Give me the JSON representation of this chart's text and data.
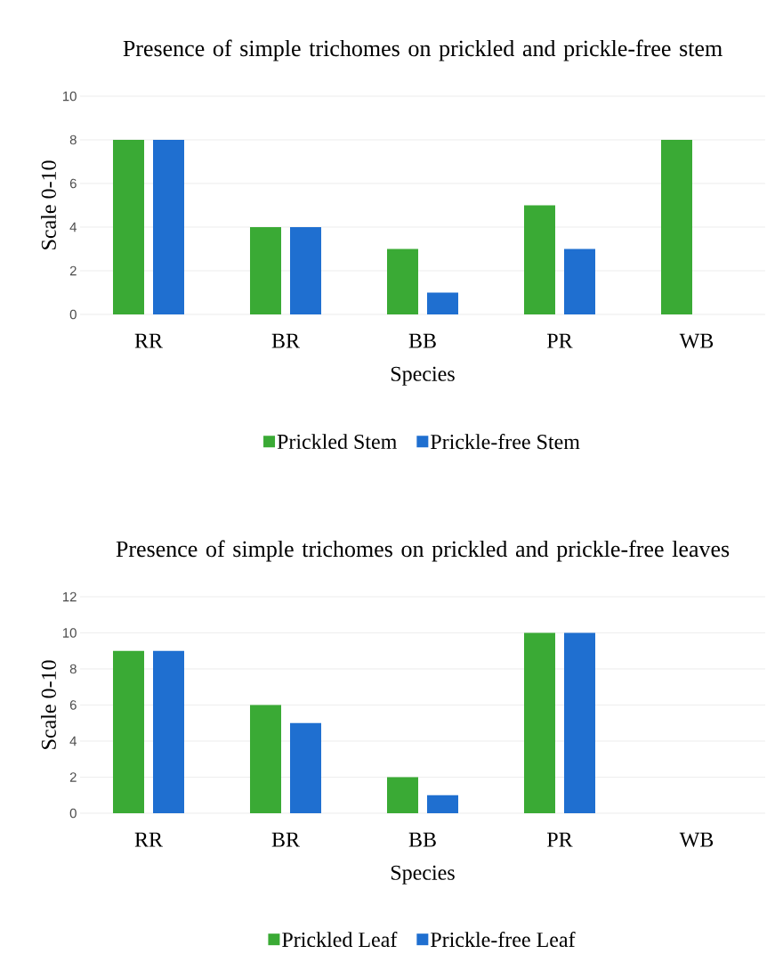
{
  "chart_data": [
    {
      "type": "bar",
      "title": "Presence of simple  trichomes  on prickled and prickle-free stem",
      "xlabel": "Species",
      "ylabel": "Scale 0-10",
      "categories": [
        "RR",
        "BR",
        "BB",
        "PR",
        "WB"
      ],
      "series": [
        {
          "name": "Prickled Stem",
          "color": "#3aaa35",
          "values": [
            8,
            4,
            3,
            5,
            8
          ]
        },
        {
          "name": "Prickle-free Stem",
          "color": "#1f6fd0",
          "values": [
            8,
            4,
            1,
            3,
            0
          ]
        }
      ],
      "ylim": [
        0,
        10
      ],
      "yticks": [
        0,
        2,
        4,
        6,
        8,
        10
      ],
      "grid": "y",
      "legend": "bottom"
    },
    {
      "type": "bar",
      "title": "Presence of simple  trichomes  on prickled and prickle-free leaves",
      "xlabel": "Species",
      "ylabel": "Scale 0-10",
      "categories": [
        "RR",
        "BR",
        "BB",
        "PR",
        "WB"
      ],
      "series": [
        {
          "name": "Prickled Leaf",
          "color": "#3aaa35",
          "values": [
            9,
            6,
            2,
            10,
            0
          ]
        },
        {
          "name": "Prickle-free Leaf",
          "color": "#1f6fd0",
          "values": [
            9,
            5,
            1,
            10,
            0
          ]
        }
      ],
      "ylim": [
        0,
        12
      ],
      "yticks": [
        0,
        2,
        4,
        6,
        8,
        10,
        12
      ],
      "grid": "y",
      "legend": "bottom"
    }
  ]
}
